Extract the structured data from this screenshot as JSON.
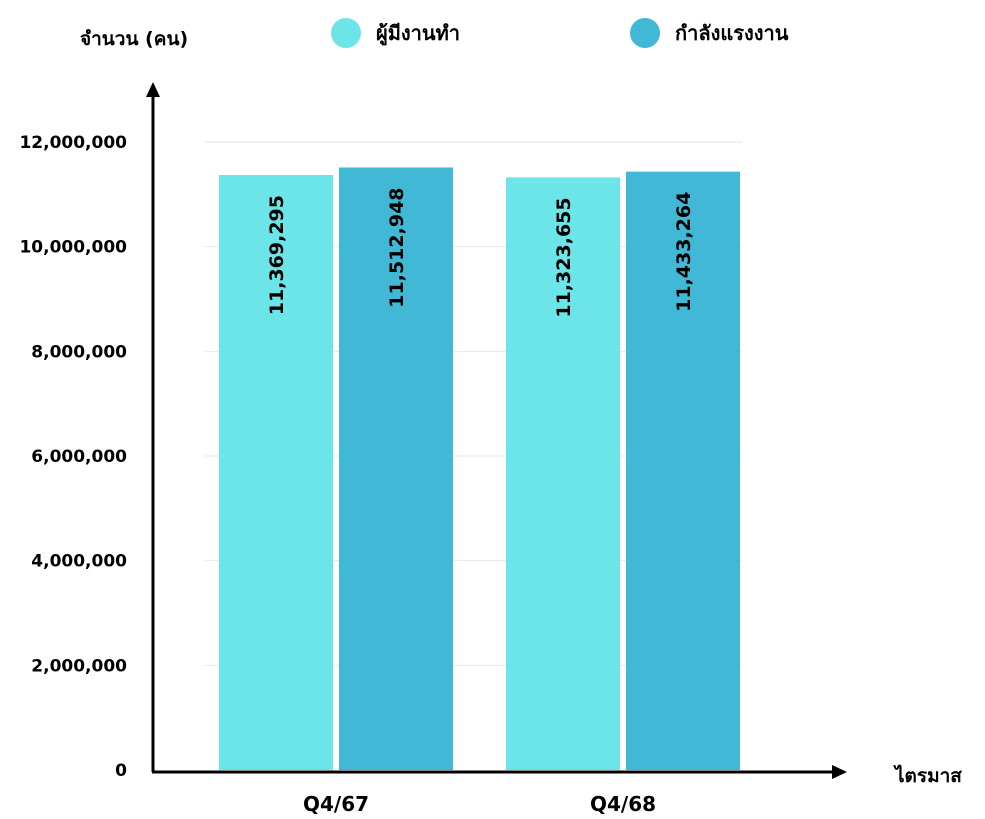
{
  "chart_data": {
    "type": "bar",
    "ylabel": "จำนวน (คน)",
    "xlabel": "ไตรมาส",
    "categories": [
      "Q4/67",
      "Q4/68"
    ],
    "series": [
      {
        "name": "ผู้มีงานทำ",
        "values": [
          11369295,
          11323655
        ],
        "color": "#6CE5E8",
        "value_labels": [
          "11,369,295",
          "11,323,655"
        ]
      },
      {
        "name": "กำลังแรงงาน",
        "values": [
          11512948,
          11433264
        ],
        "color": "#41B8D5",
        "value_labels": [
          "11,512,948",
          "11,433,264"
        ]
      }
    ],
    "ylim": [
      0,
      12000000
    ],
    "yticks": [
      0,
      2000000,
      4000000,
      6000000,
      8000000,
      10000000,
      12000000
    ],
    "ytick_labels": [
      "0",
      "2,000,000",
      "4,000,000",
      "6,000,000",
      "8,000,000",
      "10,000,000",
      "12,000,000"
    ],
    "grid": true,
    "legend": "top"
  }
}
